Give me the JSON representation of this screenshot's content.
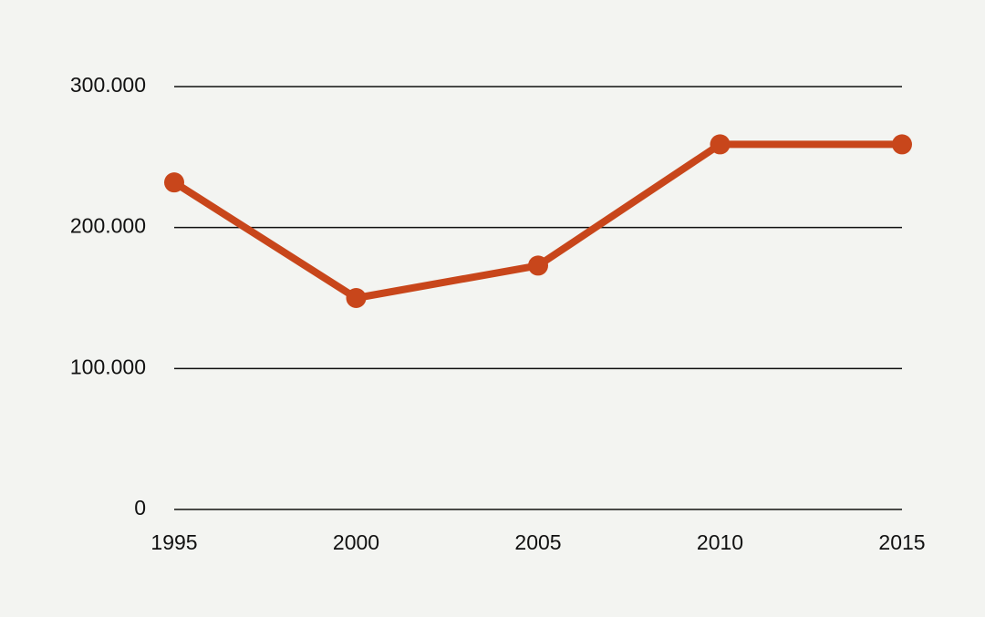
{
  "chart_data": {
    "type": "line",
    "x": [
      1995,
      2000,
      2005,
      2010,
      2015
    ],
    "values": [
      232000,
      150000,
      173000,
      259000,
      259000
    ],
    "color": "#c8461b",
    "xlim": [
      1995,
      2015
    ],
    "xticks": [
      1995,
      2000,
      2005,
      2010,
      2015
    ],
    "ylim": [
      0,
      300000
    ],
    "yticks": [
      0,
      {
        "value": 100000,
        "label": "100.000"
      },
      {
        "value": 200000,
        "label": "200.000"
      },
      {
        "value": 300000,
        "label": "300.000"
      }
    ],
    "grid": true
  }
}
